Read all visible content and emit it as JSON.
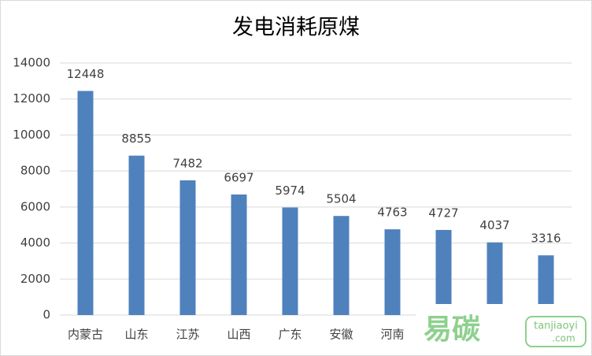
{
  "chart_data": {
    "type": "bar",
    "title": "发电消耗原煤",
    "categories": [
      "内蒙古",
      "山东",
      "江苏",
      "山西",
      "广东",
      "安徽",
      "河南",
      null,
      null,
      null
    ],
    "values": [
      12448,
      8855,
      7482,
      6697,
      5974,
      5504,
      4763,
      4727,
      4037,
      3316
    ],
    "color": "#4f81bd",
    "ylim": [
      0,
      14000
    ],
    "yticks": [
      0,
      2000,
      4000,
      6000,
      8000,
      10000,
      12000,
      14000
    ],
    "grid": true
  },
  "watermark": {
    "brand": "易碳",
    "site": "tanjiaoyi",
    "domain": ".com"
  }
}
